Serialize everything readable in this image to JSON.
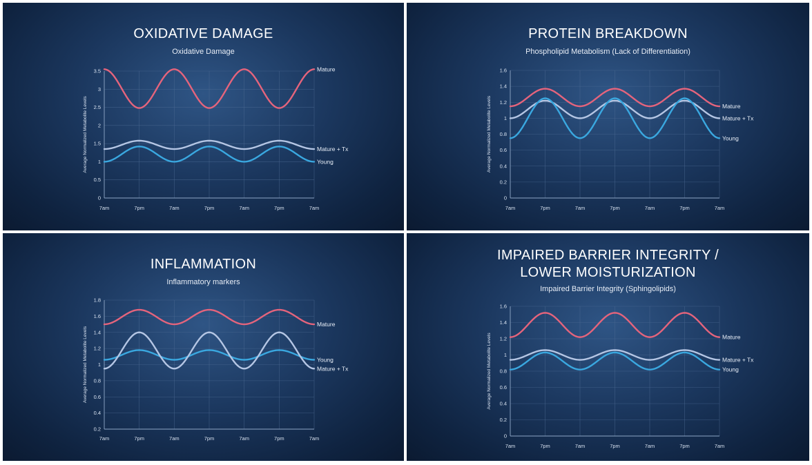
{
  "chart_data": [
    {
      "type": "line",
      "title": "OXIDATIVE DAMAGE",
      "subtitle": "Oxidative Damage",
      "xlabel": "",
      "ylabel": "Average Normalized Metabolite Levels",
      "categories": [
        "7am",
        "7pm",
        "7am",
        "7pm",
        "7am",
        "7pm",
        "7am"
      ],
      "ylim": [
        0,
        3.5
      ],
      "yticks": [
        "0",
        "0.5",
        "1",
        "1.5",
        "2",
        "2.5",
        "3",
        "3.5"
      ],
      "grid": true,
      "series": [
        {
          "name": "Mature",
          "color": "#e5647c",
          "values": [
            3.55,
            2.48,
            3.55,
            2.48,
            3.55,
            2.48,
            3.55
          ]
        },
        {
          "name": "Mature + Tx",
          "color": "#b5c6e4",
          "values": [
            1.35,
            1.58,
            1.35,
            1.58,
            1.35,
            1.58,
            1.35
          ]
        },
        {
          "name": "Young",
          "color": "#3aa8e0",
          "values": [
            1.0,
            1.42,
            1.0,
            1.42,
            1.0,
            1.42,
            1.0
          ]
        }
      ]
    },
    {
      "type": "line",
      "title": "PROTEIN BREAKDOWN",
      "subtitle": "Phospholipid Metabolism (Lack of Differentiation)",
      "xlabel": "",
      "ylabel": "Average Normalized Metabolite Levels",
      "categories": [
        "7am",
        "7pm",
        "7am",
        "7pm",
        "7am",
        "7pm",
        "7am"
      ],
      "ylim": [
        0,
        1.6
      ],
      "yticks": [
        "0",
        "0.2",
        "0.4",
        "0.6",
        "0.8",
        "1",
        "1.2",
        "1.4",
        "1.6"
      ],
      "grid": true,
      "series": [
        {
          "name": "Mature",
          "color": "#e5647c",
          "values": [
            1.15,
            1.37,
            1.15,
            1.37,
            1.15,
            1.37,
            1.15
          ]
        },
        {
          "name": "Mature + Tx",
          "color": "#b5c6e4",
          "values": [
            1.0,
            1.22,
            1.0,
            1.22,
            1.0,
            1.22,
            1.0
          ]
        },
        {
          "name": "Young",
          "color": "#3aa8e0",
          "values": [
            0.75,
            1.25,
            0.75,
            1.25,
            0.75,
            1.25,
            0.75
          ]
        }
      ]
    },
    {
      "type": "line",
      "title": "INFLAMMATION",
      "subtitle": "Inflammatory markers",
      "xlabel": "",
      "ylabel": "Average Normalized Metabolite Levels",
      "categories": [
        "7am",
        "7pm",
        "7am",
        "7pm",
        "7am",
        "7pm",
        "7am"
      ],
      "ylim": [
        0.2,
        1.8
      ],
      "yticks": [
        "0.2",
        "0.4",
        "0.6",
        "0.8",
        "1",
        "1.2",
        "1.4",
        "1.6",
        "1.8"
      ],
      "grid": true,
      "series": [
        {
          "name": "Mature",
          "color": "#e5647c",
          "values": [
            1.5,
            1.68,
            1.5,
            1.68,
            1.5,
            1.68,
            1.5
          ]
        },
        {
          "name": "Young",
          "color": "#3aa8e0",
          "values": [
            1.06,
            1.18,
            1.06,
            1.18,
            1.06,
            1.18,
            1.06
          ]
        },
        {
          "name": "Mature + Tx",
          "color": "#b5c6e4",
          "values": [
            0.95,
            1.4,
            0.95,
            1.4,
            0.95,
            1.4,
            0.95
          ]
        }
      ]
    },
    {
      "type": "line",
      "title": "IMPAIRED BARRIER INTEGRITY / LOWER MOISTURIZATION",
      "title_lines": [
        "IMPAIRED BARRIER INTEGRITY /",
        "LOWER MOISTURIZATION"
      ],
      "subtitle": "Impaired Barrier Integrity (Sphingolipids)",
      "xlabel": "",
      "ylabel": "Average Normalized Metabolite Levels",
      "categories": [
        "7am",
        "7pm",
        "7am",
        "7pm",
        "7am",
        "7pm",
        "7am"
      ],
      "ylim": [
        0,
        1.6
      ],
      "yticks": [
        "0",
        "0.2",
        "0.4",
        "0.6",
        "0.8",
        "1",
        "1.2",
        "1.4",
        "1.6"
      ],
      "grid": true,
      "series": [
        {
          "name": "Mature",
          "color": "#e5647c",
          "values": [
            1.22,
            1.52,
            1.22,
            1.52,
            1.22,
            1.52,
            1.22
          ]
        },
        {
          "name": "Mature + Tx",
          "color": "#b5c6e4",
          "values": [
            0.94,
            1.06,
            0.94,
            1.06,
            0.94,
            1.06,
            0.94
          ]
        },
        {
          "name": "Young",
          "color": "#3aa8e0",
          "values": [
            0.82,
            1.03,
            0.82,
            1.03,
            0.82,
            1.03,
            0.82
          ]
        }
      ]
    }
  ]
}
